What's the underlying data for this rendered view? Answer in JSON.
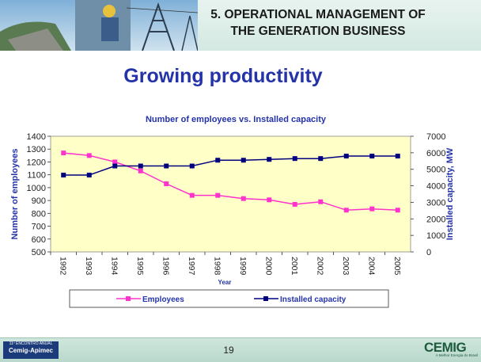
{
  "header": {
    "title_line1": "5. OPERATIONAL  MANAGEMENT OF",
    "title_line2": "THE GENERATION BUSINESS"
  },
  "slide_title": "Growing productivity",
  "footer": {
    "event_small": "11º ENCONTRO ANUAL",
    "event_name": "Cemig-Apimec",
    "page_number": "19",
    "brand": "CEMIG",
    "brand_tagline": "A Melhor Energia do Brasil"
  },
  "colors": {
    "plot_background": "#ffffc8",
    "employees": "#ff33cc",
    "capacity": "#000080",
    "title_blue": "#2433a8"
  },
  "chart_data": {
    "type": "line",
    "title": "Number of employees vs. Installed capacity",
    "xlabel": "Year",
    "ylabel": "Number of employees",
    "y2label": "Installed capacity, MW",
    "categories": [
      "1992",
      "1993",
      "1994",
      "1995",
      "1996",
      "1997",
      "1998",
      "1999",
      "2000",
      "2001",
      "2002",
      "2003",
      "2004",
      "2005"
    ],
    "ylim": [
      500,
      1400
    ],
    "yticks": [
      500,
      600,
      700,
      800,
      900,
      1000,
      1100,
      1200,
      1300,
      1400
    ],
    "y2lim": [
      0,
      7000
    ],
    "y2ticks": [
      0,
      1000,
      2000,
      3000,
      4000,
      5000,
      6000,
      7000
    ],
    "grid": false,
    "legend_position": "bottom",
    "series": [
      {
        "name": "Employees",
        "axis": "left",
        "values": [
          1270,
          1250,
          1200,
          1130,
          1030,
          940,
          940,
          915,
          905,
          870,
          890,
          825,
          835,
          825
        ]
      },
      {
        "name": "Installed capacity",
        "axis": "right",
        "values": [
          4650,
          4650,
          5200,
          5200,
          5200,
          5200,
          5550,
          5550,
          5600,
          5650,
          5650,
          5800,
          5800,
          5800
        ]
      }
    ]
  }
}
